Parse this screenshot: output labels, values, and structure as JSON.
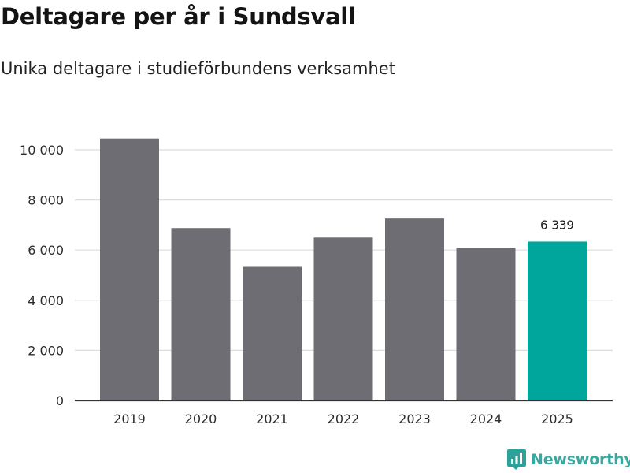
{
  "title": "Deltagare per år i Sundsvall",
  "subtitle": "Unika deltagare i studieförbundens verksamhet",
  "brand": {
    "name": "Newsworthy",
    "icon": "newsworthy-logo-icon",
    "color": "#2aa39b"
  },
  "colors": {
    "bar": "#6e6d73",
    "highlight": "#00a59b",
    "grid": "#dcdcdc",
    "axis": "#333333"
  },
  "chart_data": {
    "type": "bar",
    "title": "Deltagare per år i Sundsvall",
    "subtitle": "Unika deltagare i studieförbundens verksamhet",
    "xlabel": "",
    "ylabel": "",
    "categories": [
      "2019",
      "2020",
      "2021",
      "2022",
      "2023",
      "2024",
      "2025"
    ],
    "values": [
      10450,
      6880,
      5330,
      6500,
      7260,
      6090,
      6339
    ],
    "highlight_index": 6,
    "data_labels": [
      {
        "index": 6,
        "text": "6 339"
      }
    ],
    "ylim": [
      0,
      11000
    ],
    "yticks": [
      0,
      2000,
      4000,
      6000,
      8000,
      10000
    ],
    "ytick_labels": [
      "0",
      "2 000",
      "4 000",
      "6 000",
      "8 000",
      "10 000"
    ],
    "grid": true,
    "legend": "none"
  }
}
